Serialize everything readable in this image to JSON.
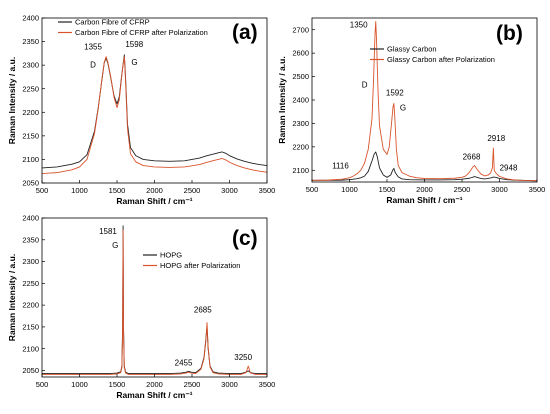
{
  "chart_data": [
    {
      "type": "line",
      "panel_label": "(a)",
      "xlabel": "Raman Shift / cm⁻¹",
      "ylabel": "Raman Intensity / a.u.",
      "xlim": [
        500,
        3500
      ],
      "ylim": [
        2050,
        2400
      ],
      "xticks": [
        500,
        1000,
        1500,
        2000,
        2500,
        3000,
        3500
      ],
      "yticks": [
        2050,
        2100,
        2150,
        2200,
        2250,
        2300,
        2350,
        2400
      ],
      "legend_position": "top-left",
      "series": [
        {
          "name": "Carbon Fibre of CFRP",
          "color": "#222222",
          "x": [
            500,
            600,
            700,
            800,
            900,
            1000,
            1100,
            1200,
            1250,
            1300,
            1330,
            1355,
            1380,
            1420,
            1460,
            1500,
            1530,
            1560,
            1580,
            1598,
            1615,
            1640,
            1680,
            1750,
            1850,
            2000,
            2200,
            2400,
            2600,
            2700,
            2800,
            2850,
            2900,
            2950,
            3000,
            3100,
            3200,
            3300,
            3400,
            3500
          ],
          "y": [
            2082,
            2083,
            2084,
            2087,
            2090,
            2095,
            2110,
            2160,
            2210,
            2270,
            2305,
            2315,
            2303,
            2270,
            2235,
            2218,
            2232,
            2275,
            2300,
            2322,
            2270,
            2175,
            2125,
            2108,
            2100,
            2097,
            2096,
            2097,
            2103,
            2108,
            2112,
            2114,
            2116,
            2113,
            2108,
            2101,
            2096,
            2092,
            2089,
            2087
          ]
        },
        {
          "name": "Carbon Fibre of CFRP after Polarization",
          "color": "#d9542c",
          "x": [
            500,
            600,
            700,
            800,
            900,
            1000,
            1100,
            1200,
            1250,
            1300,
            1330,
            1355,
            1380,
            1420,
            1460,
            1500,
            1530,
            1560,
            1580,
            1598,
            1615,
            1640,
            1680,
            1750,
            1850,
            2000,
            2200,
            2400,
            2600,
            2700,
            2800,
            2850,
            2900,
            2950,
            3000,
            3100,
            3200,
            3300,
            3400,
            3500
          ],
          "y": [
            2070,
            2071,
            2072,
            2075,
            2078,
            2084,
            2100,
            2155,
            2208,
            2272,
            2306,
            2318,
            2305,
            2272,
            2232,
            2210,
            2226,
            2272,
            2300,
            2318,
            2262,
            2165,
            2112,
            2095,
            2087,
            2084,
            2083,
            2084,
            2089,
            2094,
            2098,
            2100,
            2102,
            2099,
            2094,
            2087,
            2082,
            2078,
            2075,
            2073
          ]
        }
      ],
      "annotations": [
        {
          "text": "1355",
          "x": 1355
        },
        {
          "text": "D",
          "x": 1355
        },
        {
          "text": "1598",
          "x": 1598
        },
        {
          "text": "G",
          "x": 1598
        }
      ]
    },
    {
      "type": "line",
      "panel_label": "(b)",
      "xlabel": "Raman Shift / cm⁻¹",
      "ylabel": "Raman Intensity / a.u.",
      "xlim": [
        500,
        3500
      ],
      "ylim": [
        2050,
        2750
      ],
      "xticks": [
        500,
        1000,
        1500,
        2000,
        2500,
        3000,
        3500
      ],
      "yticks": [
        2100,
        2200,
        2300,
        2400,
        2500,
        2600,
        2700
      ],
      "legend_position": "top-right",
      "series": [
        {
          "name": "Glassy Carbon",
          "color": "#222222",
          "x": [
            500,
            700,
            900,
            1000,
            1100,
            1150,
            1200,
            1250,
            1300,
            1330,
            1350,
            1370,
            1400,
            1450,
            1500,
            1550,
            1575,
            1592,
            1610,
            1650,
            1700,
            1800,
            2000,
            2200,
            2400,
            2500,
            2600,
            2650,
            2668,
            2700,
            2750,
            2800,
            2850,
            2900,
            2918,
            2948,
            3000,
            3100,
            3200,
            3300,
            3400,
            3500
          ],
          "y": [
            2057,
            2057,
            2058,
            2060,
            2064,
            2068,
            2075,
            2095,
            2140,
            2170,
            2178,
            2158,
            2110,
            2080,
            2070,
            2080,
            2100,
            2108,
            2090,
            2072,
            2063,
            2060,
            2059,
            2059,
            2060,
            2062,
            2066,
            2071,
            2073,
            2070,
            2065,
            2063,
            2065,
            2069,
            2071,
            2070,
            2065,
            2060,
            2058,
            2057,
            2056,
            2055
          ]
        },
        {
          "name": "Glassy Carbon after Polarization",
          "color": "#d9542c",
          "x": [
            500,
            700,
            900,
            1000,
            1050,
            1100,
            1116,
            1150,
            1200,
            1250,
            1300,
            1320,
            1340,
            1350,
            1360,
            1380,
            1400,
            1450,
            1500,
            1530,
            1560,
            1580,
            1592,
            1605,
            1625,
            1650,
            1700,
            1800,
            1900,
            2000,
            2200,
            2400,
            2500,
            2550,
            2600,
            2640,
            2668,
            2700,
            2750,
            2800,
            2850,
            2880,
            2905,
            2918,
            2930,
            2948,
            2970,
            3000,
            3100,
            3200,
            3300,
            3400,
            3500
          ],
          "y": [
            2057,
            2058,
            2062,
            2068,
            2075,
            2085,
            2090,
            2100,
            2130,
            2190,
            2320,
            2480,
            2680,
            2735,
            2660,
            2440,
            2290,
            2190,
            2168,
            2200,
            2300,
            2370,
            2385,
            2320,
            2190,
            2120,
            2090,
            2075,
            2068,
            2065,
            2064,
            2066,
            2070,
            2076,
            2092,
            2112,
            2120,
            2105,
            2085,
            2076,
            2080,
            2088,
            2110,
            2195,
            2100,
            2090,
            2082,
            2074,
            2063,
            2059,
            2057,
            2056,
            2055
          ]
        }
      ],
      "annotations": [
        {
          "text": "1350",
          "x": 1350
        },
        {
          "text": "D",
          "x": 1350
        },
        {
          "text": "1592",
          "x": 1592
        },
        {
          "text": "G",
          "x": 1592
        },
        {
          "text": "1116",
          "x": 1116
        },
        {
          "text": "2668",
          "x": 2668
        },
        {
          "text": "2918",
          "x": 2918
        },
        {
          "text": "2948",
          "x": 2948
        }
      ]
    },
    {
      "type": "line",
      "panel_label": "(c)",
      "xlabel": "Raman Shift / cm⁻¹",
      "ylabel": "Raman Intensity / a.u.",
      "xlim": [
        500,
        3500
      ],
      "ylim": [
        2035,
        2400
      ],
      "xticks": [
        500,
        1000,
        1500,
        2000,
        2500,
        3000,
        3500
      ],
      "yticks": [
        2050,
        2100,
        2150,
        2200,
        2250,
        2300,
        2350,
        2400
      ],
      "legend_position": "top-right",
      "series": [
        {
          "name": "HOPG",
          "color": "#222222",
          "x": [
            500,
            1000,
            1400,
            1500,
            1550,
            1565,
            1575,
            1581,
            1587,
            1597,
            1615,
            1650,
            1800,
            2000,
            2200,
            2350,
            2420,
            2455,
            2490,
            2550,
            2620,
            2660,
            2685,
            2700,
            2715,
            2740,
            2780,
            2850,
            3000,
            3150,
            3220,
            3250,
            3280,
            3350,
            3500
          ],
          "y": [
            2043,
            2043,
            2043,
            2044,
            2047,
            2060,
            2150,
            2382,
            2150,
            2060,
            2046,
            2043,
            2043,
            2043,
            2043,
            2044,
            2046,
            2048,
            2046,
            2045,
            2055,
            2080,
            2122,
            2152,
            2100,
            2060,
            2047,
            2044,
            2043,
            2043,
            2046,
            2049,
            2045,
            2043,
            2043
          ]
        },
        {
          "name": "HOPG after Polarization",
          "color": "#d9542c",
          "x": [
            500,
            1000,
            1400,
            1500,
            1550,
            1565,
            1575,
            1581,
            1587,
            1597,
            1615,
            1650,
            1800,
            2000,
            2200,
            2350,
            2420,
            2455,
            2490,
            2550,
            2620,
            2660,
            2685,
            2700,
            2715,
            2740,
            2780,
            2850,
            3000,
            3150,
            3220,
            3250,
            3280,
            3350,
            3500
          ],
          "y": [
            2041,
            2041,
            2041,
            2042,
            2045,
            2057,
            2140,
            2372,
            2140,
            2057,
            2044,
            2041,
            2041,
            2041,
            2041,
            2042,
            2044,
            2046,
            2044,
            2043,
            2053,
            2077,
            2118,
            2160,
            2105,
            2058,
            2045,
            2042,
            2041,
            2041,
            2045,
            2060,
            2044,
            2041,
            2041
          ]
        }
      ],
      "annotations": [
        {
          "text": "1581",
          "x": 1581
        },
        {
          "text": "G",
          "x": 1581
        },
        {
          "text": "2455",
          "x": 2455
        },
        {
          "text": "2685",
          "x": 2685
        },
        {
          "text": "3250",
          "x": 3250
        }
      ]
    }
  ]
}
